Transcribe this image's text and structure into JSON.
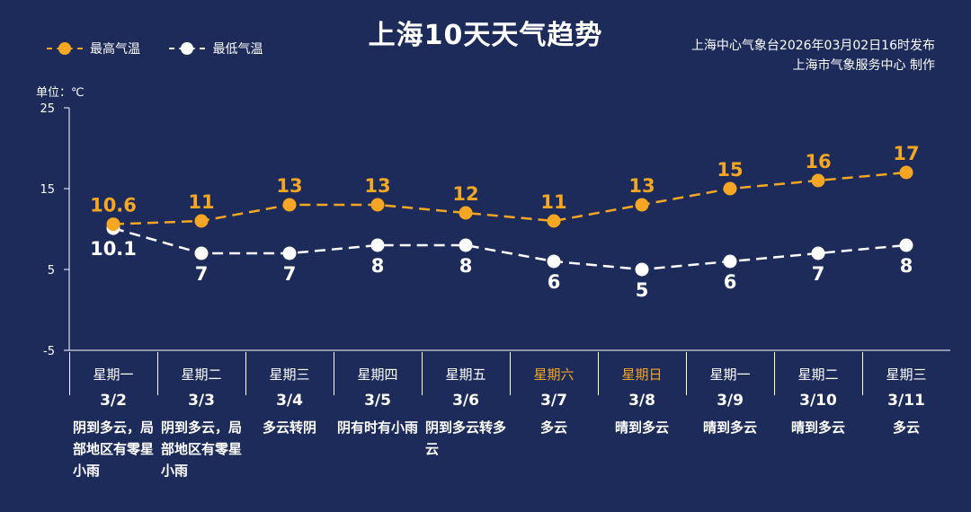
{
  "title": "上海10天天气趋势",
  "legend": {
    "high_label": "最高气温",
    "low_label": "最低气温"
  },
  "source": {
    "line1": "上海中心气象台2026年03月02日16时发布",
    "line2": "上海市气象服务中心  制作"
  },
  "unit_label": "单位：℃",
  "colors": {
    "background": "#1c2b5a",
    "high": "#f5a623",
    "low": "#ffffff",
    "weekend": "#f5a623"
  },
  "days": [
    {
      "week": "星期一",
      "date": "3/2",
      "weather": "阴到多云，局部地区有零星小雨",
      "weekend": false
    },
    {
      "week": "星期二",
      "date": "3/3",
      "weather": "阴到多云，局部地区有零星小雨",
      "weekend": false
    },
    {
      "week": "星期三",
      "date": "3/4",
      "weather": "多云转阴",
      "weekend": false
    },
    {
      "week": "星期四",
      "date": "3/5",
      "weather": "阴有时有小雨",
      "weekend": false
    },
    {
      "week": "星期五",
      "date": "3/6",
      "weather": "阴到多云转多云",
      "weekend": false
    },
    {
      "week": "星期六",
      "date": "3/7",
      "weather": "多云",
      "weekend": true
    },
    {
      "week": "星期日",
      "date": "3/8",
      "weather": "晴到多云",
      "weekend": true
    },
    {
      "week": "星期一",
      "date": "3/9",
      "weather": "晴到多云",
      "weekend": false
    },
    {
      "week": "星期二",
      "date": "3/10",
      "weather": "晴到多云",
      "weekend": false
    },
    {
      "week": "星期三",
      "date": "3/11",
      "weather": "多云",
      "weekend": false
    }
  ],
  "chart_data": {
    "type": "line",
    "x": [
      "3/2",
      "3/3",
      "3/4",
      "3/5",
      "3/6",
      "3/7",
      "3/8",
      "3/9",
      "3/10",
      "3/11"
    ],
    "series": [
      {
        "name": "最高气温",
        "values": [
          10.6,
          11,
          13,
          13,
          12,
          11,
          13,
          15,
          16,
          17
        ]
      },
      {
        "name": "最低气温",
        "values": [
          10.1,
          7,
          7,
          8,
          8,
          6,
          5,
          6,
          7,
          8
        ]
      }
    ],
    "yticks": [
      25,
      15,
      5,
      -5
    ],
    "ylim": [
      -5,
      25
    ],
    "ylabel": "单位：℃"
  }
}
